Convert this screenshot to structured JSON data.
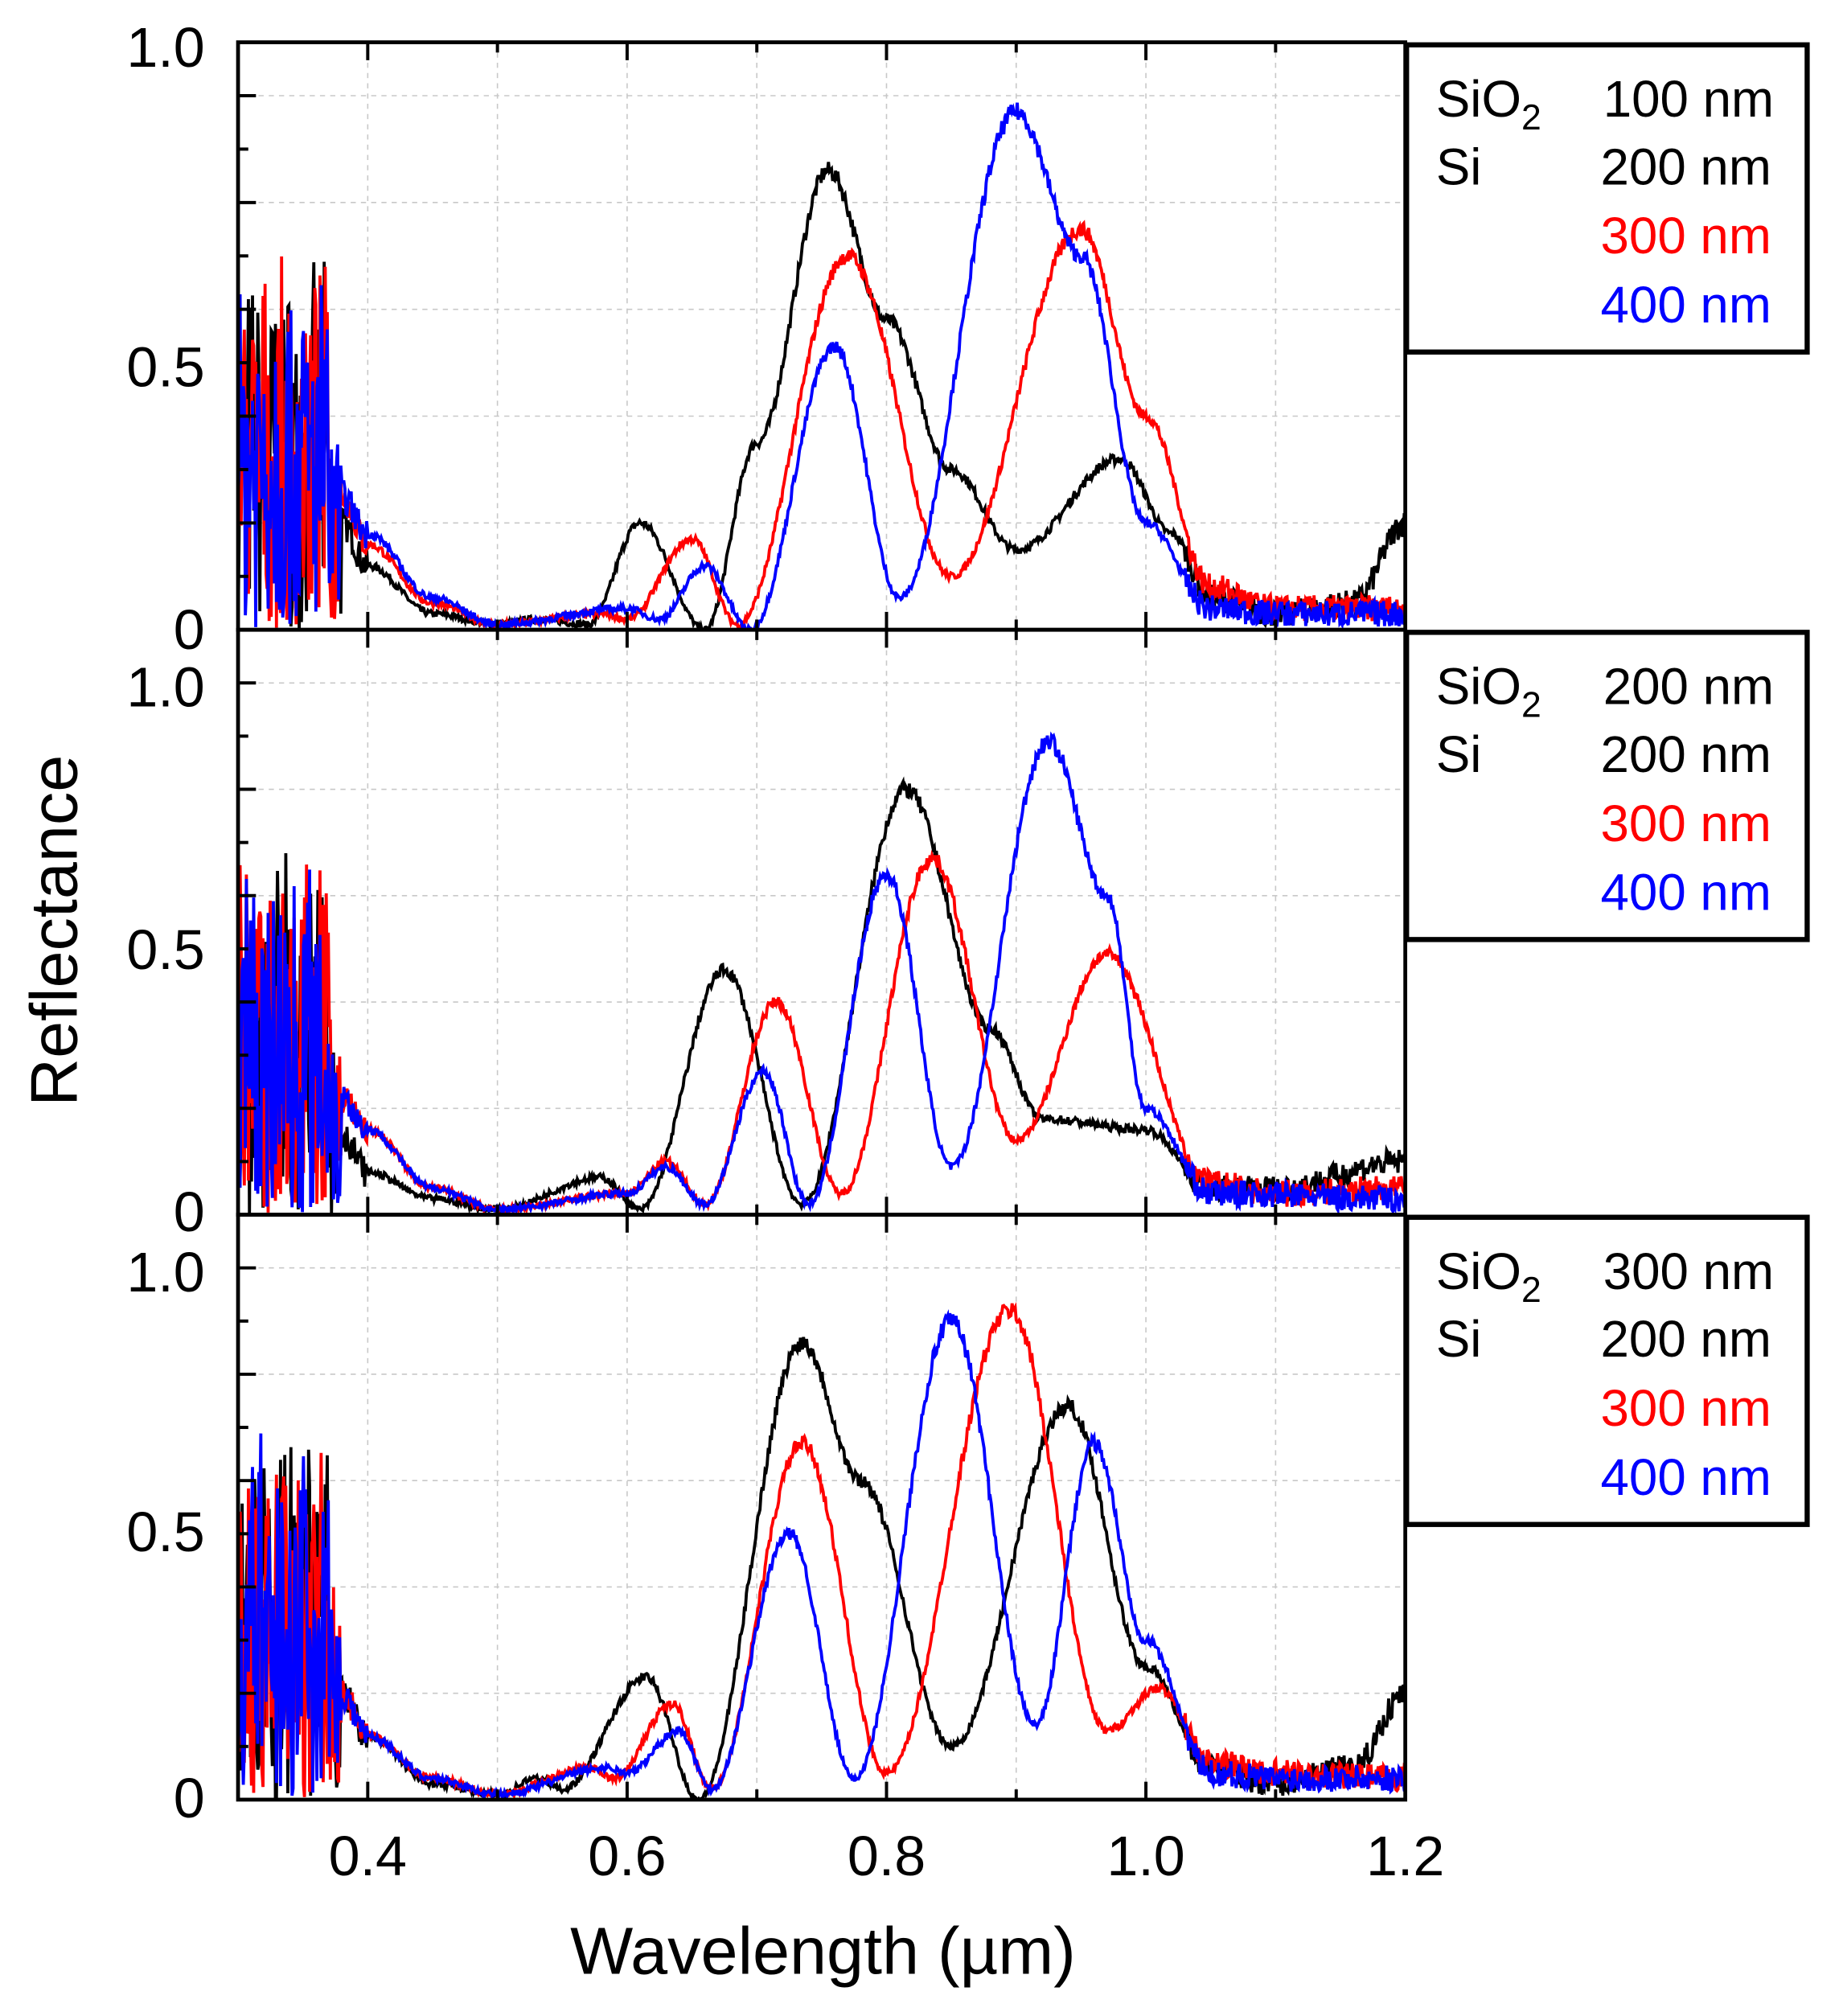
{
  "chart_data": {
    "type": "line",
    "xlabel": "Wavelength (µm)",
    "ylabel": "Reflectance",
    "xlim": [
      0.3,
      1.2
    ],
    "ylim": [
      0,
      1.1
    ],
    "x_ticks": [
      "0.4",
      "0.6",
      "0.8",
      "1.0",
      "1.2"
    ],
    "x_tick_values": [
      0.4,
      0.6,
      0.8,
      1.0,
      1.2
    ],
    "y_ticks": [
      "1.0",
      "0.5",
      "0"
    ],
    "grid": true,
    "colors": {
      "200 nm": "#000000",
      "300 nm": "#ff0000",
      "400 nm": "#0000ff"
    },
    "panels": [
      {
        "legend": {
          "sio2_label": "SiO",
          "sio2_sub": "2",
          "sio2_value": "100 nm",
          "si_label": "Si",
          "entries": [
            "200 nm",
            "300 nm",
            "400 nm"
          ]
        },
        "series": [
          {
            "name": "200 nm",
            "color": "#000000",
            "points": [
              [
                0.3,
                0.25
              ],
              [
                0.38,
                0.2
              ],
              [
                0.4,
                0.12
              ],
              [
                0.45,
                0.03
              ],
              [
                0.5,
                0.01
              ],
              [
                0.53,
                0.02
              ],
              [
                0.57,
                0.01
              ],
              [
                0.61,
                0.2
              ],
              [
                0.66,
                0.0
              ],
              [
                0.7,
                0.35
              ],
              [
                0.755,
                0.86
              ],
              [
                0.8,
                0.58
              ],
              [
                0.85,
                0.3
              ],
              [
                0.9,
                0.15
              ],
              [
                0.98,
                0.32
              ],
              [
                1.02,
                0.18
              ],
              [
                1.05,
                0.06
              ],
              [
                1.1,
                0.03
              ],
              [
                1.16,
                0.05
              ],
              [
                1.2,
                0.2
              ]
            ]
          },
          {
            "name": "300 nm",
            "color": "#ff0000",
            "points": [
              [
                0.3,
                0.25
              ],
              [
                0.38,
                0.25
              ],
              [
                0.4,
                0.16
              ],
              [
                0.45,
                0.05
              ],
              [
                0.5,
                0.01
              ],
              [
                0.58,
                0.03
              ],
              [
                0.6,
                0.02
              ],
              [
                0.65,
                0.17
              ],
              [
                0.685,
                0.01
              ],
              [
                0.77,
                0.7
              ],
              [
                0.85,
                0.1
              ],
              [
                0.95,
                0.75
              ],
              [
                1.0,
                0.4
              ],
              [
                1.05,
                0.08
              ],
              [
                1.1,
                0.04
              ],
              [
                1.2,
                0.04
              ]
            ]
          },
          {
            "name": "400 nm",
            "color": "#0000ff",
            "points": [
              [
                0.3,
                0.25
              ],
              [
                0.38,
                0.25
              ],
              [
                0.4,
                0.18
              ],
              [
                0.45,
                0.06
              ],
              [
                0.5,
                0.01
              ],
              [
                0.6,
                0.04
              ],
              [
                0.625,
                0.02
              ],
              [
                0.66,
                0.12
              ],
              [
                0.695,
                0.0
              ],
              [
                0.76,
                0.53
              ],
              [
                0.81,
                0.06
              ],
              [
                0.9,
                0.97
              ],
              [
                0.95,
                0.7
              ],
              [
                1.0,
                0.2
              ],
              [
                1.05,
                0.04
              ],
              [
                1.1,
                0.03
              ],
              [
                1.2,
                0.03
              ]
            ]
          }
        ]
      },
      {
        "legend": {
          "sio2_label": "SiO",
          "sio2_sub": "2",
          "sio2_value": "200 nm",
          "si_label": "Si",
          "entries": [
            "200 nm",
            "300 nm",
            "400 nm"
          ]
        },
        "series": [
          {
            "name": "200 nm",
            "color": "#000000",
            "points": [
              [
                0.3,
                0.25
              ],
              [
                0.38,
                0.15
              ],
              [
                0.4,
                0.08
              ],
              [
                0.45,
                0.03
              ],
              [
                0.5,
                0.01
              ],
              [
                0.58,
                0.07
              ],
              [
                0.61,
                0.01
              ],
              [
                0.675,
                0.46
              ],
              [
                0.735,
                0.02
              ],
              [
                0.815,
                0.8
              ],
              [
                0.88,
                0.35
              ],
              [
                0.92,
                0.18
              ],
              [
                1.0,
                0.16
              ],
              [
                1.05,
                0.05
              ],
              [
                1.1,
                0.05
              ],
              [
                1.2,
                0.1
              ]
            ]
          },
          {
            "name": "300 nm",
            "color": "#ff0000",
            "points": [
              [
                0.3,
                0.25
              ],
              [
                0.38,
                0.22
              ],
              [
                0.4,
                0.16
              ],
              [
                0.45,
                0.05
              ],
              [
                0.5,
                0.01
              ],
              [
                0.6,
                0.04
              ],
              [
                0.63,
                0.1
              ],
              [
                0.66,
                0.02
              ],
              [
                0.715,
                0.4
              ],
              [
                0.765,
                0.04
              ],
              [
                0.835,
                0.67
              ],
              [
                0.9,
                0.14
              ],
              [
                0.97,
                0.49
              ],
              [
                1.05,
                0.06
              ],
              [
                1.1,
                0.04
              ],
              [
                1.2,
                0.05
              ]
            ]
          },
          {
            "name": "400 nm",
            "color": "#0000ff",
            "points": [
              [
                0.3,
                0.25
              ],
              [
                0.38,
                0.22
              ],
              [
                0.4,
                0.16
              ],
              [
                0.45,
                0.05
              ],
              [
                0.5,
                0.01
              ],
              [
                0.6,
                0.04
              ],
              [
                0.63,
                0.09
              ],
              [
                0.66,
                0.02
              ],
              [
                0.705,
                0.27
              ],
              [
                0.74,
                0.02
              ],
              [
                0.8,
                0.64
              ],
              [
                0.85,
                0.09
              ],
              [
                0.925,
                0.89
              ],
              [
                0.97,
                0.6
              ],
              [
                1.0,
                0.2
              ],
              [
                1.05,
                0.04
              ],
              [
                1.2,
                0.03
              ]
            ]
          }
        ]
      },
      {
        "legend": {
          "sio2_label": "SiO",
          "sio2_sub": "2",
          "sio2_value": "300 nm",
          "si_label": "Si",
          "entries": [
            "200 nm",
            "300 nm",
            "400 nm"
          ]
        },
        "series": [
          {
            "name": "200 nm",
            "color": "#000000",
            "points": [
              [
                0.3,
                0.25
              ],
              [
                0.38,
                0.2
              ],
              [
                0.4,
                0.12
              ],
              [
                0.45,
                0.03
              ],
              [
                0.5,
                0.01
              ],
              [
                0.53,
                0.04
              ],
              [
                0.55,
                0.02
              ],
              [
                0.615,
                0.23
              ],
              [
                0.655,
                0.0
              ],
              [
                0.735,
                0.86
              ],
              [
                0.78,
                0.6
              ],
              [
                0.85,
                0.1
              ],
              [
                0.94,
                0.74
              ],
              [
                1.0,
                0.25
              ],
              [
                1.05,
                0.06
              ],
              [
                1.1,
                0.03
              ],
              [
                1.16,
                0.06
              ],
              [
                1.2,
                0.2
              ]
            ]
          },
          {
            "name": "300 nm",
            "color": "#ff0000",
            "points": [
              [
                0.3,
                0.25
              ],
              [
                0.38,
                0.2
              ],
              [
                0.4,
                0.12
              ],
              [
                0.45,
                0.04
              ],
              [
                0.5,
                0.01
              ],
              [
                0.57,
                0.06
              ],
              [
                0.59,
                0.04
              ],
              [
                0.635,
                0.18
              ],
              [
                0.665,
                0.02
              ],
              [
                0.735,
                0.67
              ],
              [
                0.8,
                0.05
              ],
              [
                0.895,
                0.92
              ],
              [
                0.97,
                0.13
              ],
              [
                1.01,
                0.21
              ],
              [
                1.05,
                0.07
              ],
              [
                1.1,
                0.05
              ],
              [
                1.2,
                0.04
              ]
            ]
          },
          {
            "name": "400 nm",
            "color": "#0000ff",
            "points": [
              [
                0.3,
                0.25
              ],
              [
                0.38,
                0.2
              ],
              [
                0.4,
                0.12
              ],
              [
                0.45,
                0.04
              ],
              [
                0.5,
                0.01
              ],
              [
                0.585,
                0.06
              ],
              [
                0.6,
                0.05
              ],
              [
                0.64,
                0.13
              ],
              [
                0.665,
                0.02
              ],
              [
                0.725,
                0.5
              ],
              [
                0.775,
                0.04
              ],
              [
                0.85,
                0.9
              ],
              [
                0.915,
                0.14
              ],
              [
                0.96,
                0.67
              ],
              [
                1.0,
                0.3
              ],
              [
                1.05,
                0.05
              ],
              [
                1.1,
                0.04
              ],
              [
                1.2,
                0.04
              ]
            ]
          }
        ]
      }
    ]
  }
}
